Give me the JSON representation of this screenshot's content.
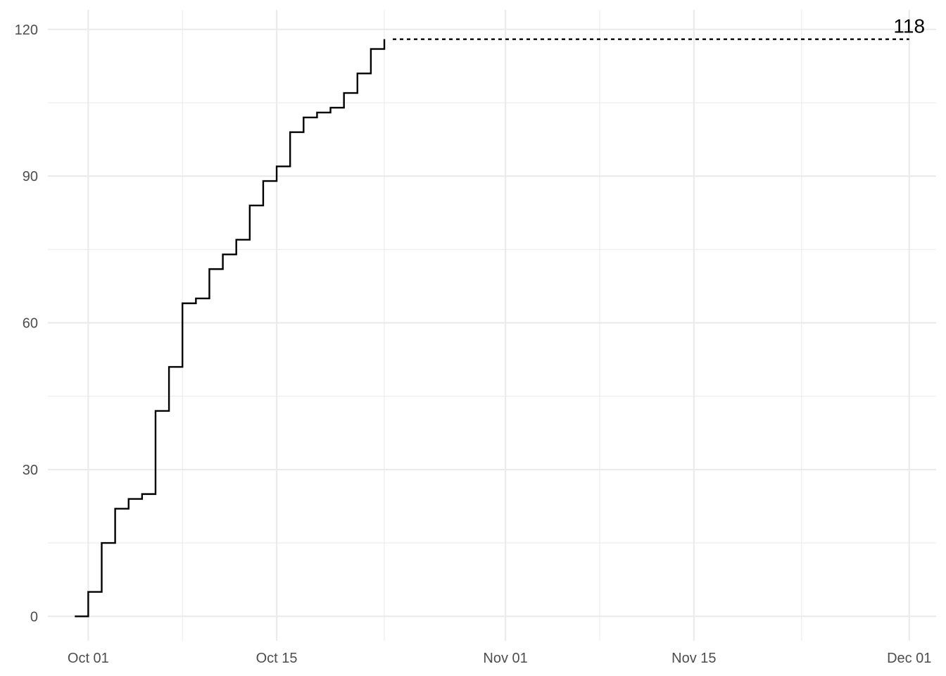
{
  "chart_data": {
    "type": "line",
    "title": "",
    "xlabel": "",
    "ylabel": "",
    "x_type": "date",
    "xlim": [
      "2024-09-28",
      "2024-12-03"
    ],
    "ylim": [
      -5,
      124
    ],
    "x_major_ticks": [
      {
        "date": "2024-10-01",
        "label": "Oct 01"
      },
      {
        "date": "2024-10-15",
        "label": "Oct 15"
      },
      {
        "date": "2024-11-01",
        "label": "Nov 01"
      },
      {
        "date": "2024-11-15",
        "label": "Nov 15"
      },
      {
        "date": "2024-12-01",
        "label": "Dec 01"
      }
    ],
    "x_minor_ticks": [
      "2024-10-08",
      "2024-10-23",
      "2024-11-08",
      "2024-11-23"
    ],
    "y_major_ticks": [
      0,
      30,
      60,
      90,
      120
    ],
    "y_minor_ticks": [
      15,
      45,
      75,
      105
    ],
    "grid": true,
    "series": [
      {
        "step": "hv",
        "color": "#000000",
        "points": [
          {
            "x": "2024-09-30",
            "y": 0
          },
          {
            "x": "2024-10-01",
            "y": 5
          },
          {
            "x": "2024-10-02",
            "y": 15
          },
          {
            "x": "2024-10-03",
            "y": 22
          },
          {
            "x": "2024-10-04",
            "y": 24
          },
          {
            "x": "2024-10-05",
            "y": 25
          },
          {
            "x": "2024-10-06",
            "y": 42
          },
          {
            "x": "2024-10-07",
            "y": 51
          },
          {
            "x": "2024-10-08",
            "y": 64
          },
          {
            "x": "2024-10-09",
            "y": 65
          },
          {
            "x": "2024-10-10",
            "y": 71
          },
          {
            "x": "2024-10-11",
            "y": 74
          },
          {
            "x": "2024-10-12",
            "y": 77
          },
          {
            "x": "2024-10-13",
            "y": 84
          },
          {
            "x": "2024-10-14",
            "y": 89
          },
          {
            "x": "2024-10-15",
            "y": 92
          },
          {
            "x": "2024-10-16",
            "y": 99
          },
          {
            "x": "2024-10-17",
            "y": 102
          },
          {
            "x": "2024-10-18",
            "y": 103
          },
          {
            "x": "2024-10-19",
            "y": 104
          },
          {
            "x": "2024-10-20",
            "y": 107
          },
          {
            "x": "2024-10-21",
            "y": 111
          },
          {
            "x": "2024-10-22",
            "y": 116
          },
          {
            "x": "2024-10-23",
            "y": 118
          }
        ]
      }
    ],
    "reference_line": {
      "style": "dotted",
      "y": 118,
      "x_start": "2024-10-23",
      "x_end": "2024-12-01"
    },
    "annotations": [
      {
        "text": "118",
        "x": "2024-12-01",
        "y": 118
      }
    ]
  }
}
